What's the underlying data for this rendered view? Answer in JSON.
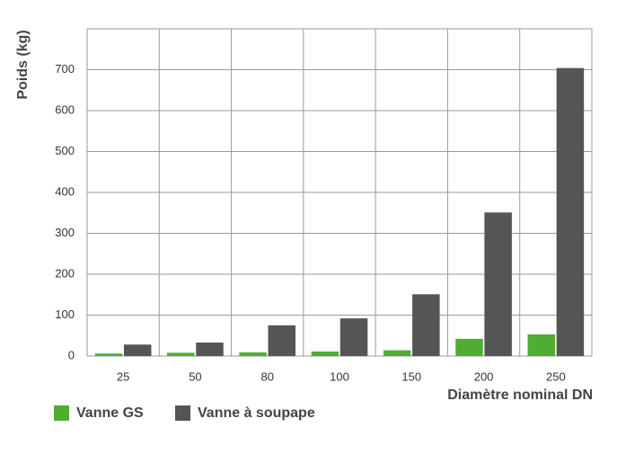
{
  "chart_data": {
    "type": "bar",
    "y_label": "Poids (kg)",
    "x_label": "Diamètre nominal DN",
    "categories": [
      "25",
      "50",
      "80",
      "100",
      "150",
      "200",
      "250"
    ],
    "series": [
      {
        "name": "Vanne GS",
        "color": "#4fae32",
        "values": [
          6,
          8,
          9,
          11,
          14,
          42,
          53
        ]
      },
      {
        "name": "Vanne à soupape",
        "color": "#555555",
        "values": [
          28,
          33,
          75,
          92,
          151,
          351,
          704
        ]
      }
    ],
    "ylim": [
      0,
      800
    ],
    "yticks": [
      0,
      100,
      200,
      300,
      400,
      500,
      600,
      700
    ],
    "grid": true
  }
}
